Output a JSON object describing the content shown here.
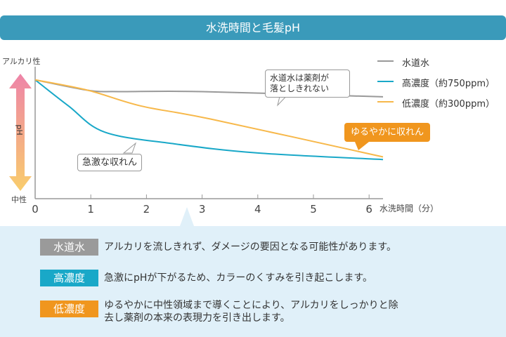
{
  "title": "水洗時間と毛髪pH",
  "chart_data": {
    "type": "line",
    "title": "水洗時間と毛髪pH",
    "xlabel": "水洗時間（分）",
    "ylabel": "pH",
    "y_top_label": "アルカリ性",
    "y_bottom_label": "中性",
    "x_ticks": [
      "0",
      "1",
      "2",
      "3",
      "4",
      "5",
      "6"
    ],
    "xlim": [
      0,
      6.4
    ],
    "ylim": [
      0,
      100
    ],
    "legend_position": "top-right",
    "series": [
      {
        "name": "水道水",
        "color": "#999999",
        "x": [
          0,
          0.95,
          1.5,
          3,
          6.25
        ],
        "y": [
          91,
          83,
          82,
          82,
          78
        ]
      },
      {
        "name": "高濃度（約750ppm）",
        "color": "#19a8c8",
        "x": [
          0,
          0.6,
          1.25,
          2.5,
          4,
          6.25
        ],
        "y": [
          91,
          71,
          51,
          42,
          35,
          30
        ]
      },
      {
        "name": "低濃度（約300ppm）",
        "color": "#f7b84a",
        "x": [
          0,
          0.95,
          1.9,
          3.15,
          6.25
        ],
        "y": [
          91,
          83,
          71,
          61,
          32
        ]
      }
    ],
    "annotations": [
      "水道水は薬剤が\n落としきれない",
      "急激な収れん",
      "ゆるやかに収れん"
    ]
  },
  "notes": [
    {
      "badge": "水道水",
      "color": "#9a9a9a",
      "text": "アルカリを流しきれず、ダメージの要因となる可能性があります。"
    },
    {
      "badge": "高濃度",
      "color": "#19a8c8",
      "text": "急激にpHが下がるため、カラーのくすみを引き起こします。"
    },
    {
      "badge": "低濃度",
      "color": "#f0961e",
      "text": "ゆるやかに中性領域まで導くことにより、アルカリをしっかりと除\n去し薬剤の本来の表現力を引き出します。"
    }
  ]
}
